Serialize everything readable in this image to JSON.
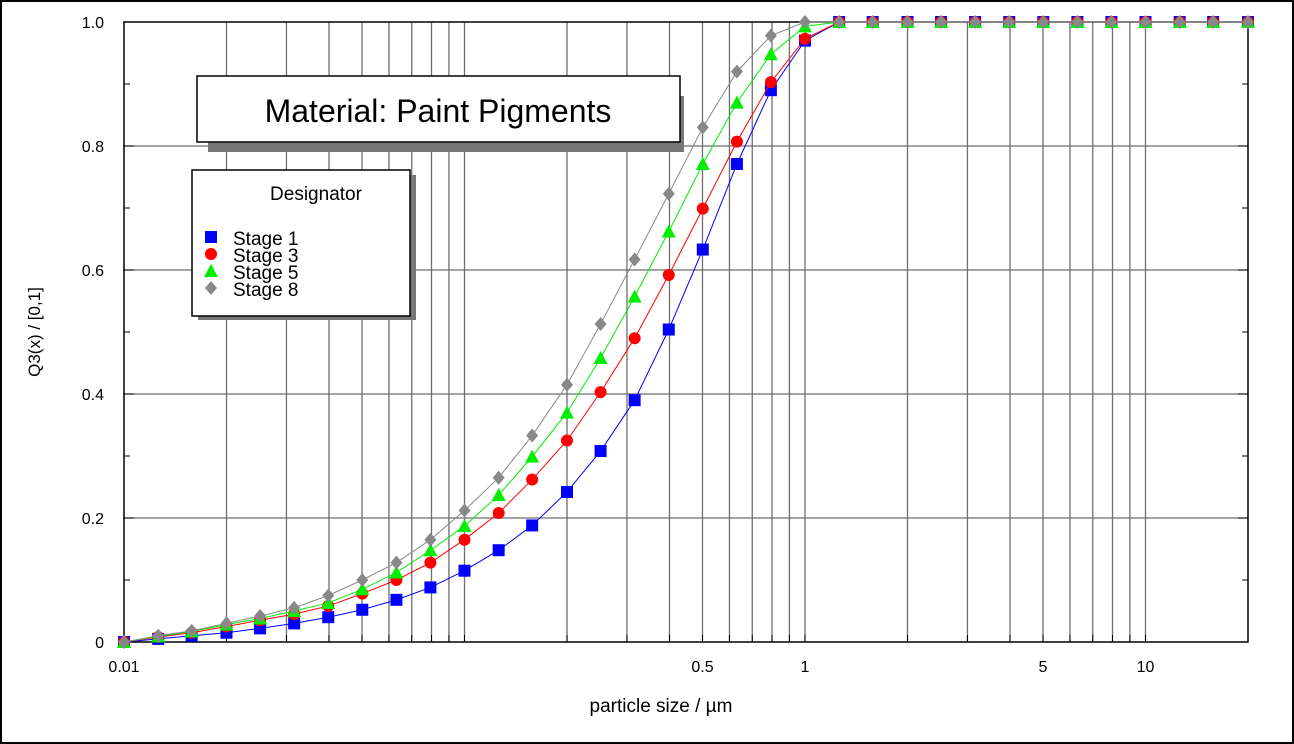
{
  "chart_data": {
    "type": "line",
    "title": "Material: Paint Pigments",
    "xlabel": "particle size / µm",
    "ylabel": "Q3(x) / [0,1]",
    "x_scale": "log",
    "xlim": [
      0.01,
      20
    ],
    "ylim": [
      0,
      1.0
    ],
    "grid": true,
    "x_tick_labels": [
      {
        "value": 0.01,
        "label": "0.01"
      },
      {
        "value": 0.5,
        "label": "0.5"
      },
      {
        "value": 1,
        "label": "1"
      },
      {
        "value": 5,
        "label": "5"
      },
      {
        "value": 10,
        "label": "10"
      }
    ],
    "y_tick_labels": [
      {
        "value": 0,
        "label": "0"
      },
      {
        "value": 0.2,
        "label": "0.2"
      },
      {
        "value": 0.4,
        "label": "0.4"
      },
      {
        "value": 0.6,
        "label": "0.6"
      },
      {
        "value": 0.8,
        "label": "0.8"
      },
      {
        "value": 1.0,
        "label": "1.0"
      }
    ],
    "legend": {
      "title": "Designator",
      "placement": "top-left"
    },
    "x": [
      0.01,
      0.0126,
      0.0158,
      0.02,
      0.0251,
      0.0316,
      0.0398,
      0.0501,
      0.0631,
      0.0794,
      0.1,
      0.126,
      0.158,
      0.2,
      0.251,
      0.316,
      0.398,
      0.501,
      0.631,
      0.794,
      1.0,
      1.26,
      1.58,
      2.0,
      2.51,
      3.16,
      3.98,
      5.01,
      6.31,
      7.94,
      10.0,
      12.6,
      15.8,
      20.0
    ],
    "series": [
      {
        "name": "Stage 1",
        "color": "#0000ff",
        "marker": "square",
        "values": [
          0.0,
          0.005,
          0.01,
          0.015,
          0.022,
          0.03,
          0.04,
          0.052,
          0.068,
          0.088,
          0.115,
          0.148,
          0.188,
          0.242,
          0.308,
          0.39,
          0.504,
          0.633,
          0.771,
          0.89,
          0.97,
          1.0,
          1.0,
          1.0,
          1.0,
          1.0,
          1.0,
          1.0,
          1.0,
          1.0,
          1.0,
          1.0,
          1.0,
          1.0
        ]
      },
      {
        "name": "Stage 3",
        "color": "#ff0000",
        "marker": "circle",
        "values": [
          0.0,
          0.008,
          0.015,
          0.025,
          0.035,
          0.045,
          0.058,
          0.078,
          0.1,
          0.128,
          0.165,
          0.208,
          0.262,
          0.325,
          0.403,
          0.49,
          0.592,
          0.699,
          0.807,
          0.903,
          0.973,
          1.0,
          1.0,
          1.0,
          1.0,
          1.0,
          1.0,
          1.0,
          1.0,
          1.0,
          1.0,
          1.0,
          1.0,
          1.0
        ]
      },
      {
        "name": "Stage 5",
        "color": "#00ee00",
        "marker": "triangle",
        "values": [
          0.0,
          0.009,
          0.017,
          0.028,
          0.038,
          0.05,
          0.063,
          0.085,
          0.112,
          0.148,
          0.187,
          0.237,
          0.299,
          0.37,
          0.458,
          0.557,
          0.662,
          0.771,
          0.87,
          0.948,
          0.993,
          1.0,
          1.0,
          1.0,
          1.0,
          1.0,
          1.0,
          1.0,
          1.0,
          1.0,
          1.0,
          1.0,
          1.0,
          1.0
        ]
      },
      {
        "name": "Stage 8",
        "color": "#888888",
        "marker": "diamond",
        "values": [
          0.0,
          0.01,
          0.018,
          0.03,
          0.042,
          0.055,
          0.075,
          0.1,
          0.128,
          0.165,
          0.212,
          0.265,
          0.333,
          0.415,
          0.513,
          0.617,
          0.723,
          0.83,
          0.92,
          0.978,
          1.0,
          1.0,
          1.0,
          1.0,
          1.0,
          1.0,
          1.0,
          1.0,
          1.0,
          1.0,
          1.0,
          1.0,
          1.0,
          1.0
        ]
      }
    ]
  }
}
